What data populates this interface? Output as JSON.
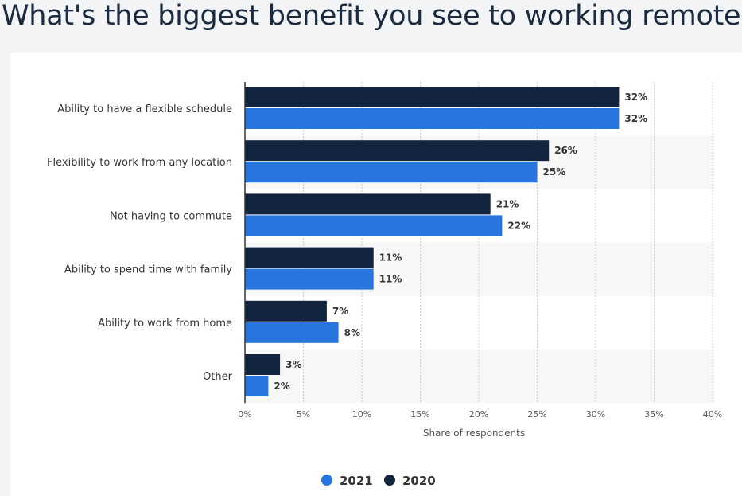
{
  "title": "What's the biggest benefit you see to working remotely?",
  "chart_data": {
    "type": "bar",
    "orientation": "horizontal",
    "categories": [
      "Ability to have a flexible schedule",
      "Flexibility to work from any location",
      "Not having to commute",
      "Ability to spend time with family",
      "Ability to work from home",
      "Other"
    ],
    "series": [
      {
        "name": "2020",
        "values": [
          32,
          26,
          21,
          11,
          7,
          3
        ],
        "labels": [
          "32%",
          "26%",
          "21%",
          "11%",
          "7%",
          "3%"
        ],
        "color": "#13253e"
      },
      {
        "name": "2021",
        "values": [
          32,
          25,
          22,
          11,
          8,
          2
        ],
        "labels": [
          "32%",
          "25%",
          "22%",
          "11%",
          "8%",
          "2%"
        ],
        "color": "#2876dd"
      }
    ],
    "xlabel": "Share of respondents",
    "ylabel": "",
    "xlim": [
      0,
      40
    ],
    "xticks": [
      "0%",
      "5%",
      "10%",
      "15%",
      "20%",
      "25%",
      "30%",
      "35%",
      "40%"
    ],
    "grid": true,
    "legend": {
      "position": "bottom",
      "items": [
        {
          "name": "2021",
          "color": "#2876dd"
        },
        {
          "name": "2020",
          "color": "#13253e"
        }
      ]
    }
  }
}
